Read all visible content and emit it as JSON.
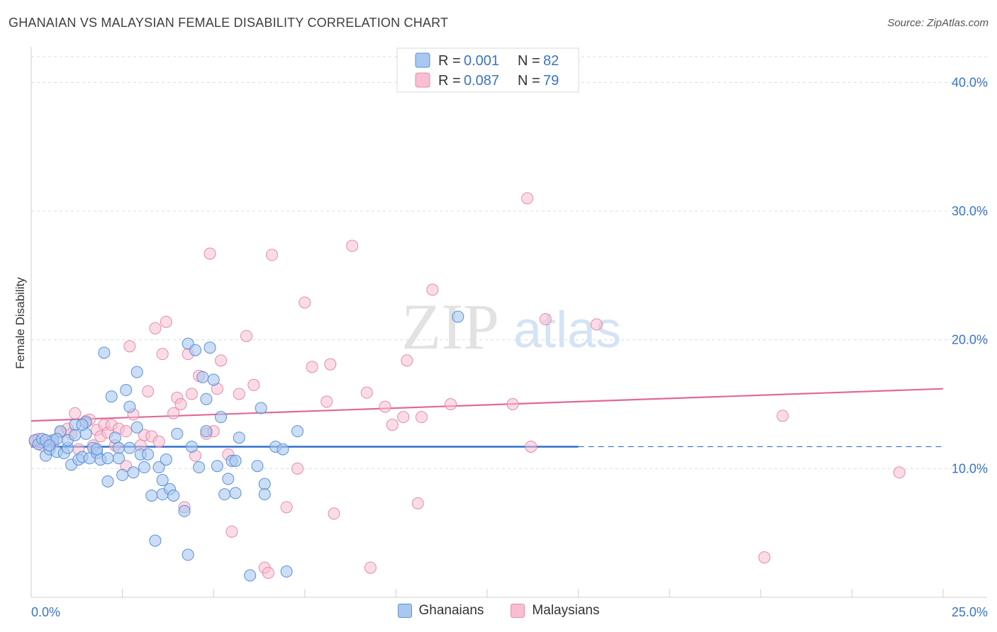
{
  "header": {
    "title": "GHANAIAN VS MALAYSIAN FEMALE DISABILITY CORRELATION CHART",
    "source": "Source: ZipAtlas.com"
  },
  "watermark": {
    "zip": "ZIP",
    "atlas": "atlas"
  },
  "legend": {
    "rows": [
      {
        "r_label": "R =",
        "r_value": "0.001",
        "n_label": "N =",
        "n_value": "82"
      },
      {
        "r_label": "R =",
        "r_value": "0.087",
        "n_label": "N =",
        "n_value": "79"
      }
    ]
  },
  "bottom_legend": {
    "ghanaians": "Ghanaians",
    "malaysians": "Malaysians"
  },
  "axis": {
    "ylabel": "Female Disability",
    "x_min_label": "0.0%",
    "x_max_label": "25.0%",
    "y_ticks": [
      "10.0%",
      "20.0%",
      "30.0%",
      "40.0%"
    ]
  },
  "colors": {
    "ghanaian_fill": "#a9c8f0",
    "ghanaian_stroke": "#5b8fd6",
    "ghanaian_line": "#2f6fc9",
    "malaysian_fill": "#f8bfd2",
    "malaysian_stroke": "#e58aa8",
    "malaysian_line": "#e0699a",
    "accent_text": "#3a74c4"
  },
  "chart_data": {
    "type": "scatter",
    "title": "GHANAIAN VS MALAYSIAN FEMALE DISABILITY CORRELATION CHART",
    "xlabel": "",
    "ylabel": "Female Disability",
    "xlim": [
      0,
      25
    ],
    "ylim": [
      0,
      42
    ],
    "y_ticks": [
      10,
      20,
      30,
      40
    ],
    "grid": true,
    "legend_position": "top-center",
    "series": [
      {
        "name": "Ghanaians",
        "r": 0.001,
        "n": 82,
        "trend": {
          "x0": 0,
          "y0": 11.7,
          "x1": 15,
          "y1": 11.7,
          "dashed_to": 25
        },
        "points": [
          [
            0.1,
            12.2
          ],
          [
            0.2,
            11.9
          ],
          [
            0.3,
            12.3
          ],
          [
            0.4,
            11.0
          ],
          [
            0.5,
            11.5
          ],
          [
            0.6,
            12.2
          ],
          [
            0.7,
            11.3
          ],
          [
            0.8,
            12.9
          ],
          [
            0.9,
            11.2
          ],
          [
            1.0,
            11.6
          ],
          [
            1.1,
            10.3
          ],
          [
            1.2,
            13.4
          ],
          [
            1.3,
            10.7
          ],
          [
            1.4,
            10.9
          ],
          [
            1.5,
            12.7
          ],
          [
            1.5,
            13.6
          ],
          [
            1.6,
            10.8
          ],
          [
            1.7,
            11.6
          ],
          [
            1.8,
            11.2
          ],
          [
            1.8,
            11.5
          ],
          [
            1.9,
            10.7
          ],
          [
            2.0,
            19.0
          ],
          [
            2.1,
            9.0
          ],
          [
            2.1,
            10.8
          ],
          [
            2.2,
            15.6
          ],
          [
            2.3,
            12.4
          ],
          [
            2.4,
            11.6
          ],
          [
            2.4,
            10.8
          ],
          [
            2.5,
            9.5
          ],
          [
            2.6,
            16.1
          ],
          [
            2.7,
            14.8
          ],
          [
            2.7,
            11.6
          ],
          [
            2.8,
            9.7
          ],
          [
            2.9,
            17.5
          ],
          [
            3.0,
            11.1
          ],
          [
            3.1,
            10.1
          ],
          [
            3.2,
            11.1
          ],
          [
            3.3,
            7.9
          ],
          [
            3.4,
            4.4
          ],
          [
            3.5,
            10.1
          ],
          [
            3.6,
            8.0
          ],
          [
            3.6,
            9.1
          ],
          [
            3.7,
            10.7
          ],
          [
            3.8,
            8.4
          ],
          [
            3.9,
            7.9
          ],
          [
            4.0,
            12.7
          ],
          [
            4.2,
            6.7
          ],
          [
            4.3,
            19.7
          ],
          [
            4.3,
            3.3
          ],
          [
            4.4,
            11.7
          ],
          [
            4.5,
            19.2
          ],
          [
            4.6,
            10.1
          ],
          [
            4.7,
            17.1
          ],
          [
            4.8,
            15.4
          ],
          [
            4.9,
            19.4
          ],
          [
            5.0,
            16.9
          ],
          [
            5.1,
            10.2
          ],
          [
            5.2,
            14.0
          ],
          [
            5.3,
            8.0
          ],
          [
            5.4,
            9.2
          ],
          [
            5.5,
            10.6
          ],
          [
            5.6,
            8.1
          ],
          [
            5.6,
            10.6
          ],
          [
            5.7,
            12.4
          ],
          [
            6.0,
            1.7
          ],
          [
            6.2,
            10.2
          ],
          [
            6.3,
            14.7
          ],
          [
            6.4,
            8.8
          ],
          [
            6.4,
            8.0
          ],
          [
            6.7,
            11.7
          ],
          [
            6.9,
            11.5
          ],
          [
            7.0,
            2.0
          ],
          [
            7.3,
            12.9
          ],
          [
            1.0,
            12.2
          ],
          [
            0.7,
            12.3
          ],
          [
            0.4,
            12.2
          ],
          [
            0.5,
            11.8
          ],
          [
            1.4,
            13.4
          ],
          [
            1.2,
            12.6
          ],
          [
            11.7,
            21.8
          ],
          [
            2.9,
            13.2
          ],
          [
            4.8,
            12.9
          ]
        ]
      },
      {
        "name": "Malaysians",
        "r": 0.087,
        "n": 79,
        "trend": {
          "x0": 0,
          "y0": 13.7,
          "x1": 25,
          "y1": 16.2
        },
        "points": [
          [
            0.1,
            12.1
          ],
          [
            0.2,
            12.3
          ],
          [
            0.3,
            11.8
          ],
          [
            0.5,
            12.1
          ],
          [
            0.6,
            12.0
          ],
          [
            0.8,
            12.8
          ],
          [
            1.0,
            13.1
          ],
          [
            1.1,
            12.7
          ],
          [
            1.2,
            14.3
          ],
          [
            1.3,
            11.5
          ],
          [
            1.5,
            13.7
          ],
          [
            1.6,
            13.8
          ],
          [
            1.7,
            11.8
          ],
          [
            1.8,
            13.0
          ],
          [
            1.9,
            12.5
          ],
          [
            2.0,
            13.4
          ],
          [
            2.1,
            12.8
          ],
          [
            2.2,
            13.4
          ],
          [
            2.3,
            11.8
          ],
          [
            2.4,
            13.1
          ],
          [
            2.6,
            12.9
          ],
          [
            2.6,
            10.2
          ],
          [
            2.7,
            19.5
          ],
          [
            2.8,
            14.2
          ],
          [
            3.0,
            11.8
          ],
          [
            3.1,
            12.6
          ],
          [
            3.2,
            16.0
          ],
          [
            3.3,
            12.5
          ],
          [
            3.4,
            20.9
          ],
          [
            3.5,
            12.1
          ],
          [
            3.6,
            18.9
          ],
          [
            3.7,
            21.4
          ],
          [
            3.9,
            14.3
          ],
          [
            4.0,
            15.5
          ],
          [
            4.1,
            15.0
          ],
          [
            4.2,
            7.0
          ],
          [
            4.3,
            18.9
          ],
          [
            4.4,
            15.8
          ],
          [
            4.5,
            11.0
          ],
          [
            4.6,
            17.2
          ],
          [
            4.8,
            12.7
          ],
          [
            4.9,
            26.7
          ],
          [
            5.0,
            12.9
          ],
          [
            5.1,
            16.2
          ],
          [
            5.2,
            18.4
          ],
          [
            5.4,
            11.1
          ],
          [
            5.5,
            5.1
          ],
          [
            5.7,
            15.8
          ],
          [
            5.9,
            20.3
          ],
          [
            6.1,
            16.5
          ],
          [
            6.4,
            2.3
          ],
          [
            6.6,
            26.6
          ],
          [
            6.5,
            1.9
          ],
          [
            7.0,
            7.0
          ],
          [
            7.3,
            10.0
          ],
          [
            7.5,
            22.9
          ],
          [
            7.7,
            17.9
          ],
          [
            8.1,
            15.2
          ],
          [
            8.2,
            18.1
          ],
          [
            8.3,
            6.5
          ],
          [
            8.8,
            27.3
          ],
          [
            9.2,
            15.9
          ],
          [
            9.3,
            2.3
          ],
          [
            9.7,
            14.8
          ],
          [
            9.9,
            13.4
          ],
          [
            10.2,
            14.0
          ],
          [
            10.3,
            18.4
          ],
          [
            10.6,
            7.3
          ],
          [
            10.7,
            14.0
          ],
          [
            11.0,
            23.9
          ],
          [
            11.5,
            15.0
          ],
          [
            13.2,
            15.0
          ],
          [
            13.6,
            31.0
          ],
          [
            13.7,
            11.7
          ],
          [
            14.1,
            21.6
          ],
          [
            15.5,
            21.2
          ],
          [
            20.1,
            3.1
          ],
          [
            20.6,
            14.1
          ],
          [
            23.8,
            9.7
          ]
        ]
      }
    ]
  }
}
